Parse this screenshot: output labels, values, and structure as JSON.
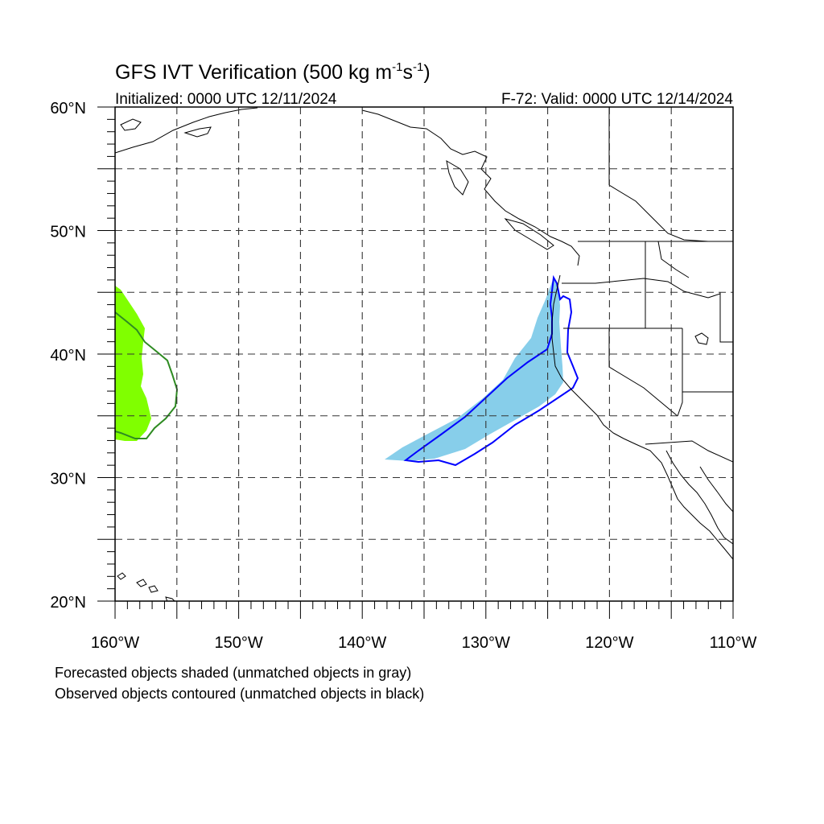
{
  "title": {
    "main": "GFS IVT Verification (500 kg m",
    "sup1": "-1",
    "mid": "s",
    "sup2": "-1",
    "close": ")"
  },
  "subtitle_left": "Initialized: 0000 UTC 12/11/2024",
  "subtitle_right": "F-72: Valid: 0000 UTC 12/14/2024",
  "map": {
    "lon_range": [
      -160,
      -110
    ],
    "lat_range": [
      20,
      60
    ],
    "grid_lons": [
      -155,
      -150,
      -145,
      -140,
      -135,
      -130,
      -125,
      -120,
      -115
    ],
    "grid_lats": [
      25,
      30,
      35,
      40,
      45,
      50,
      55
    ],
    "lon_ticks": [
      {
        "value": -160,
        "label": "160°W"
      },
      {
        "value": -150,
        "label": "150°W"
      },
      {
        "value": -140,
        "label": "140°W"
      },
      {
        "value": -130,
        "label": "130°W"
      },
      {
        "value": -120,
        "label": "120°W"
      },
      {
        "value": -110,
        "label": "110°W"
      }
    ],
    "lat_ticks": [
      {
        "value": 60,
        "label": "60°N"
      },
      {
        "value": 50,
        "label": "50°N"
      },
      {
        "value": 40,
        "label": "40°N"
      },
      {
        "value": 30,
        "label": "30°N"
      },
      {
        "value": 20,
        "label": "20°N"
      }
    ],
    "colors": {
      "forecast_green": "#80ff00",
      "forecast_blue": "#87ceea",
      "observed_green": "#2e8b22",
      "observed_blue": "#0000ff",
      "coast": "#000000"
    }
  },
  "notes": {
    "line1": "Forecasted objects shaded (unmatched objects in gray)",
    "line2": "Observed objects contoured (unmatched objects in black)"
  }
}
